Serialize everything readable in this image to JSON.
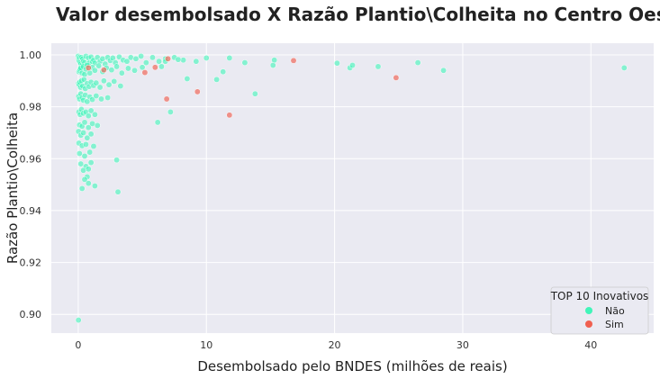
{
  "chart_data": {
    "type": "scatter",
    "title": "Valor desembolsado X Razão Plantio\\Colheita no Centro Oeste",
    "xlabel": "Desembolsado pelo BNDES (milhões de reais)",
    "ylabel": "Razão Plantio\\Colheita",
    "xlim": [
      -2.1,
      44.9
    ],
    "ylim": [
      0.8928,
      1.0045
    ],
    "xticks": [
      0,
      10,
      20,
      30,
      40
    ],
    "yticks": [
      0.9,
      0.92,
      0.94,
      0.96,
      0.98,
      1.0
    ],
    "ytick_labels": [
      "0.90",
      "0.92",
      "0.94",
      "0.96",
      "0.98",
      "1.00"
    ],
    "grid": true,
    "legend": {
      "title": "TOP 10 Inovativos",
      "position": "bottom-right",
      "entries": [
        {
          "label": "Não",
          "color": "#40f5b9"
        },
        {
          "label": "Sim",
          "color": "#f06050"
        }
      ]
    },
    "colors": {
      "background": "#eaeaf2",
      "grid": "#ffffff",
      "nao": "#40f5b9",
      "sim": "#f06050"
    },
    "series": [
      {
        "name": "Não",
        "x": [
          0.0,
          0.02,
          0.05,
          0.08,
          0.1,
          0.15,
          0.2,
          0.25,
          0.3,
          0.35,
          0.4,
          0.5,
          0.6,
          0.7,
          0.8,
          0.9,
          1.0,
          1.1,
          1.2,
          1.3,
          1.5,
          1.7,
          1.9,
          2.1,
          2.3,
          2.5,
          2.7,
          2.9,
          3.2,
          3.5,
          3.8,
          4.1,
          4.5,
          4.9,
          5.3,
          5.8,
          6.3,
          6.8,
          7.5,
          8.2,
          0.05,
          0.1,
          0.15,
          0.2,
          0.3,
          0.4,
          0.5,
          0.6,
          0.7,
          0.9,
          1.1,
          1.3,
          1.6,
          1.9,
          2.2,
          2.6,
          3.0,
          3.4,
          3.9,
          4.4,
          5.0,
          0.02,
          0.08,
          0.12,
          0.18,
          0.25,
          0.35,
          0.45,
          0.55,
          0.7,
          0.85,
          1.0,
          1.2,
          1.4,
          1.7,
          2.0,
          2.4,
          2.8,
          3.3,
          0.03,
          0.1,
          0.2,
          0.3,
          0.4,
          0.55,
          0.7,
          0.9,
          1.1,
          1.4,
          1.8,
          2.3,
          0.05,
          0.15,
          0.25,
          0.4,
          0.6,
          0.8,
          1.0,
          1.3,
          0.1,
          0.3,
          0.5,
          0.8,
          1.1,
          1.5,
          0.02,
          0.2,
          0.4,
          0.7,
          1.0,
          0.05,
          0.3,
          0.6,
          1.2,
          0.1,
          0.5,
          0.9,
          0.2,
          0.6,
          1.0,
          0.4,
          0.8,
          0.7,
          3.0,
          0.3,
          0.5,
          0.8,
          1.3,
          3.1,
          0.02,
          6.2,
          6.5,
          6.8,
          7.2,
          7.8,
          8.5,
          9.2,
          10.0,
          10.8,
          11.3,
          11.8,
          13.0,
          13.8,
          15.2,
          15.3,
          20.2,
          21.2,
          21.4,
          23.4,
          26.5,
          28.5,
          42.6
        ],
        "y": [
          0.9995,
          0.9985,
          0.998,
          0.9975,
          0.999,
          0.997,
          0.9965,
          0.999,
          0.996,
          0.9985,
          0.9975,
          0.997,
          0.9995,
          0.9965,
          0.9988,
          0.997,
          0.9992,
          0.9975,
          0.998,
          0.9968,
          0.999,
          0.9975,
          0.9985,
          0.9965,
          0.999,
          0.9978,
          0.9988,
          0.997,
          0.9992,
          0.998,
          0.9975,
          0.999,
          0.9985,
          0.9995,
          0.997,
          0.999,
          0.9975,
          0.9985,
          0.999,
          0.998,
          0.9935,
          0.994,
          0.9945,
          0.995,
          0.993,
          0.9955,
          0.9925,
          0.9945,
          0.996,
          0.993,
          0.9952,
          0.994,
          0.9958,
          0.9935,
          0.995,
          0.9942,
          0.9955,
          0.993,
          0.9948,
          0.994,
          0.9952,
          0.989,
          0.9885,
          0.9895,
          0.9875,
          0.99,
          0.988,
          0.9905,
          0.987,
          0.989,
          0.9878,
          0.9895,
          0.9882,
          0.9892,
          0.9875,
          0.99,
          0.9885,
          0.9898,
          0.988,
          0.984,
          0.983,
          0.985,
          0.9835,
          0.9825,
          0.9845,
          0.982,
          0.9838,
          0.9828,
          0.9842,
          0.983,
          0.9835,
          0.978,
          0.977,
          0.979,
          0.9775,
          0.978,
          0.9765,
          0.9785,
          0.977,
          0.973,
          0.9725,
          0.974,
          0.972,
          0.9735,
          0.9728,
          0.9705,
          0.969,
          0.97,
          0.968,
          0.9695,
          0.966,
          0.965,
          0.9655,
          0.9648,
          0.962,
          0.961,
          0.9625,
          0.958,
          0.957,
          0.9585,
          0.9555,
          0.956,
          0.953,
          0.9595,
          0.9485,
          0.952,
          0.9505,
          0.9495,
          0.9472,
          0.8978,
          0.974,
          0.9955,
          0.9975,
          0.978,
          0.9982,
          0.9908,
          0.9975,
          0.9988,
          0.9905,
          0.9935,
          0.9988,
          0.997,
          0.985,
          0.996,
          0.998,
          0.9968,
          0.995,
          0.996,
          0.9955,
          0.997,
          0.994,
          0.995
        ]
      },
      {
        "name": "Sim",
        "x": [
          0.8,
          2.0,
          5.2,
          6.0,
          6.9,
          7.0,
          9.3,
          11.8,
          16.8,
          24.8
        ],
        "y": [
          0.995,
          0.9942,
          0.9932,
          0.9952,
          0.983,
          0.9985,
          0.9858,
          0.9768,
          0.9978,
          0.9912
        ]
      }
    ]
  }
}
